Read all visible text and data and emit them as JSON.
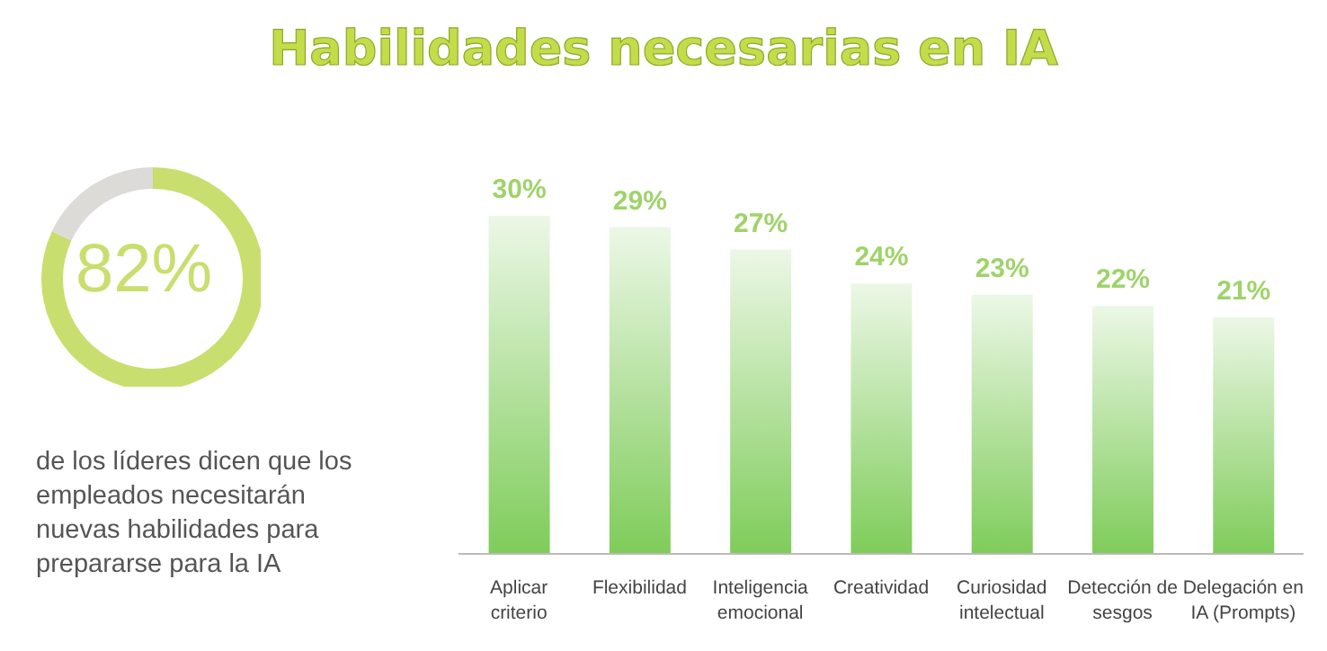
{
  "chart_data": [
    {
      "type": "donut",
      "title": "Habilidades necesarias en IA",
      "categories": [
        null,
        null
      ],
      "values": [
        82,
        18
      ],
      "colors": [
        "#c8de6e",
        "#dddbd8"
      ],
      "value_labels": [
        "82%",
        null
      ],
      "annotations": [
        "de los líderes dicen que los empleados necesitarán nuevas habilidades para prepararse para la IA"
      ]
    },
    {
      "type": "bar",
      "categories": [
        "Aplicar criterio",
        "Flexibilidad",
        "Inteligencia emocional",
        "Creatividad",
        "Curiosidad intelectual",
        "Detección de sesgos",
        "Delegación en IA (Prompts)"
      ],
      "values": [
        30,
        29,
        27,
        24,
        23,
        22,
        21
      ],
      "color": "#7fcc5a",
      "value_labels": [
        "30%",
        "29%",
        "27%",
        "24%",
        "23%",
        "22%",
        "21%"
      ]
    }
  ]
}
